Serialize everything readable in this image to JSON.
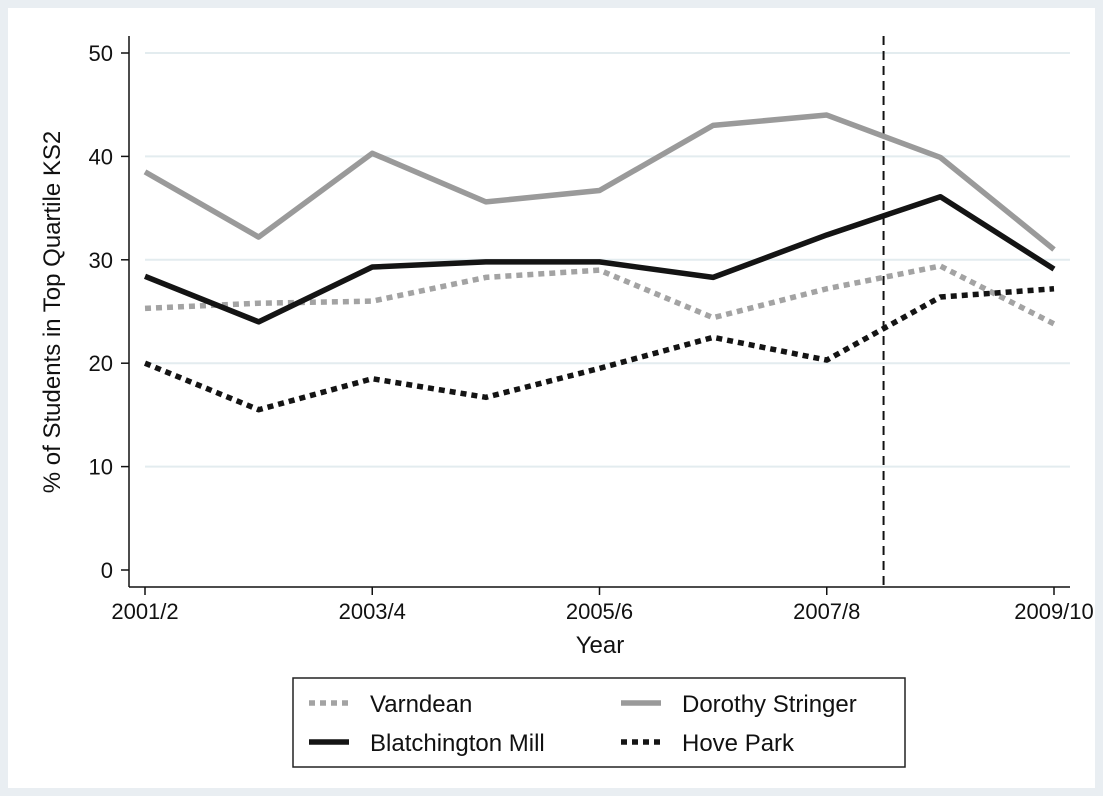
{
  "chart_data": {
    "type": "line",
    "xlabel": "Year",
    "ylabel": "% of Students in Top Quartile KS2",
    "x": [
      0,
      1,
      2,
      3,
      4,
      5,
      6,
      7,
      8
    ],
    "xlim": [
      0,
      8
    ],
    "xticks": [
      {
        "pos": 0,
        "label": "2001/2"
      },
      {
        "pos": 2,
        "label": "2003/4"
      },
      {
        "pos": 4,
        "label": "2005/6"
      },
      {
        "pos": 6,
        "label": "2007/8"
      },
      {
        "pos": 8,
        "label": "2009/10"
      }
    ],
    "ylim": [
      0,
      50
    ],
    "yticks": [
      0,
      10,
      20,
      30,
      40,
      50
    ],
    "grid": true,
    "vline_x": 6.5,
    "series": [
      {
        "name": "Varndean",
        "color": "#a3a3a3",
        "style": "dotted",
        "values": [
          25.3,
          25.8,
          26.0,
          28.3,
          29.0,
          24.4,
          27.2,
          29.4,
          23.8
        ]
      },
      {
        "name": "Dorothy Stringer",
        "color": "#9a9a9a",
        "style": "solid",
        "values": [
          38.5,
          32.2,
          40.3,
          35.6,
          36.7,
          43.0,
          44.0,
          39.9,
          31.0
        ]
      },
      {
        "name": "Blatchington Mill",
        "color": "#141414",
        "style": "solid",
        "values": [
          28.4,
          24.0,
          29.3,
          29.8,
          29.8,
          28.3,
          32.4,
          36.1,
          29.1
        ]
      },
      {
        "name": "Hove Park",
        "color": "#141414",
        "style": "dotted",
        "values": [
          20.0,
          15.5,
          18.5,
          16.7,
          19.5,
          22.5,
          20.3,
          26.4,
          27.2
        ]
      }
    ],
    "legend_position": "bottom"
  }
}
